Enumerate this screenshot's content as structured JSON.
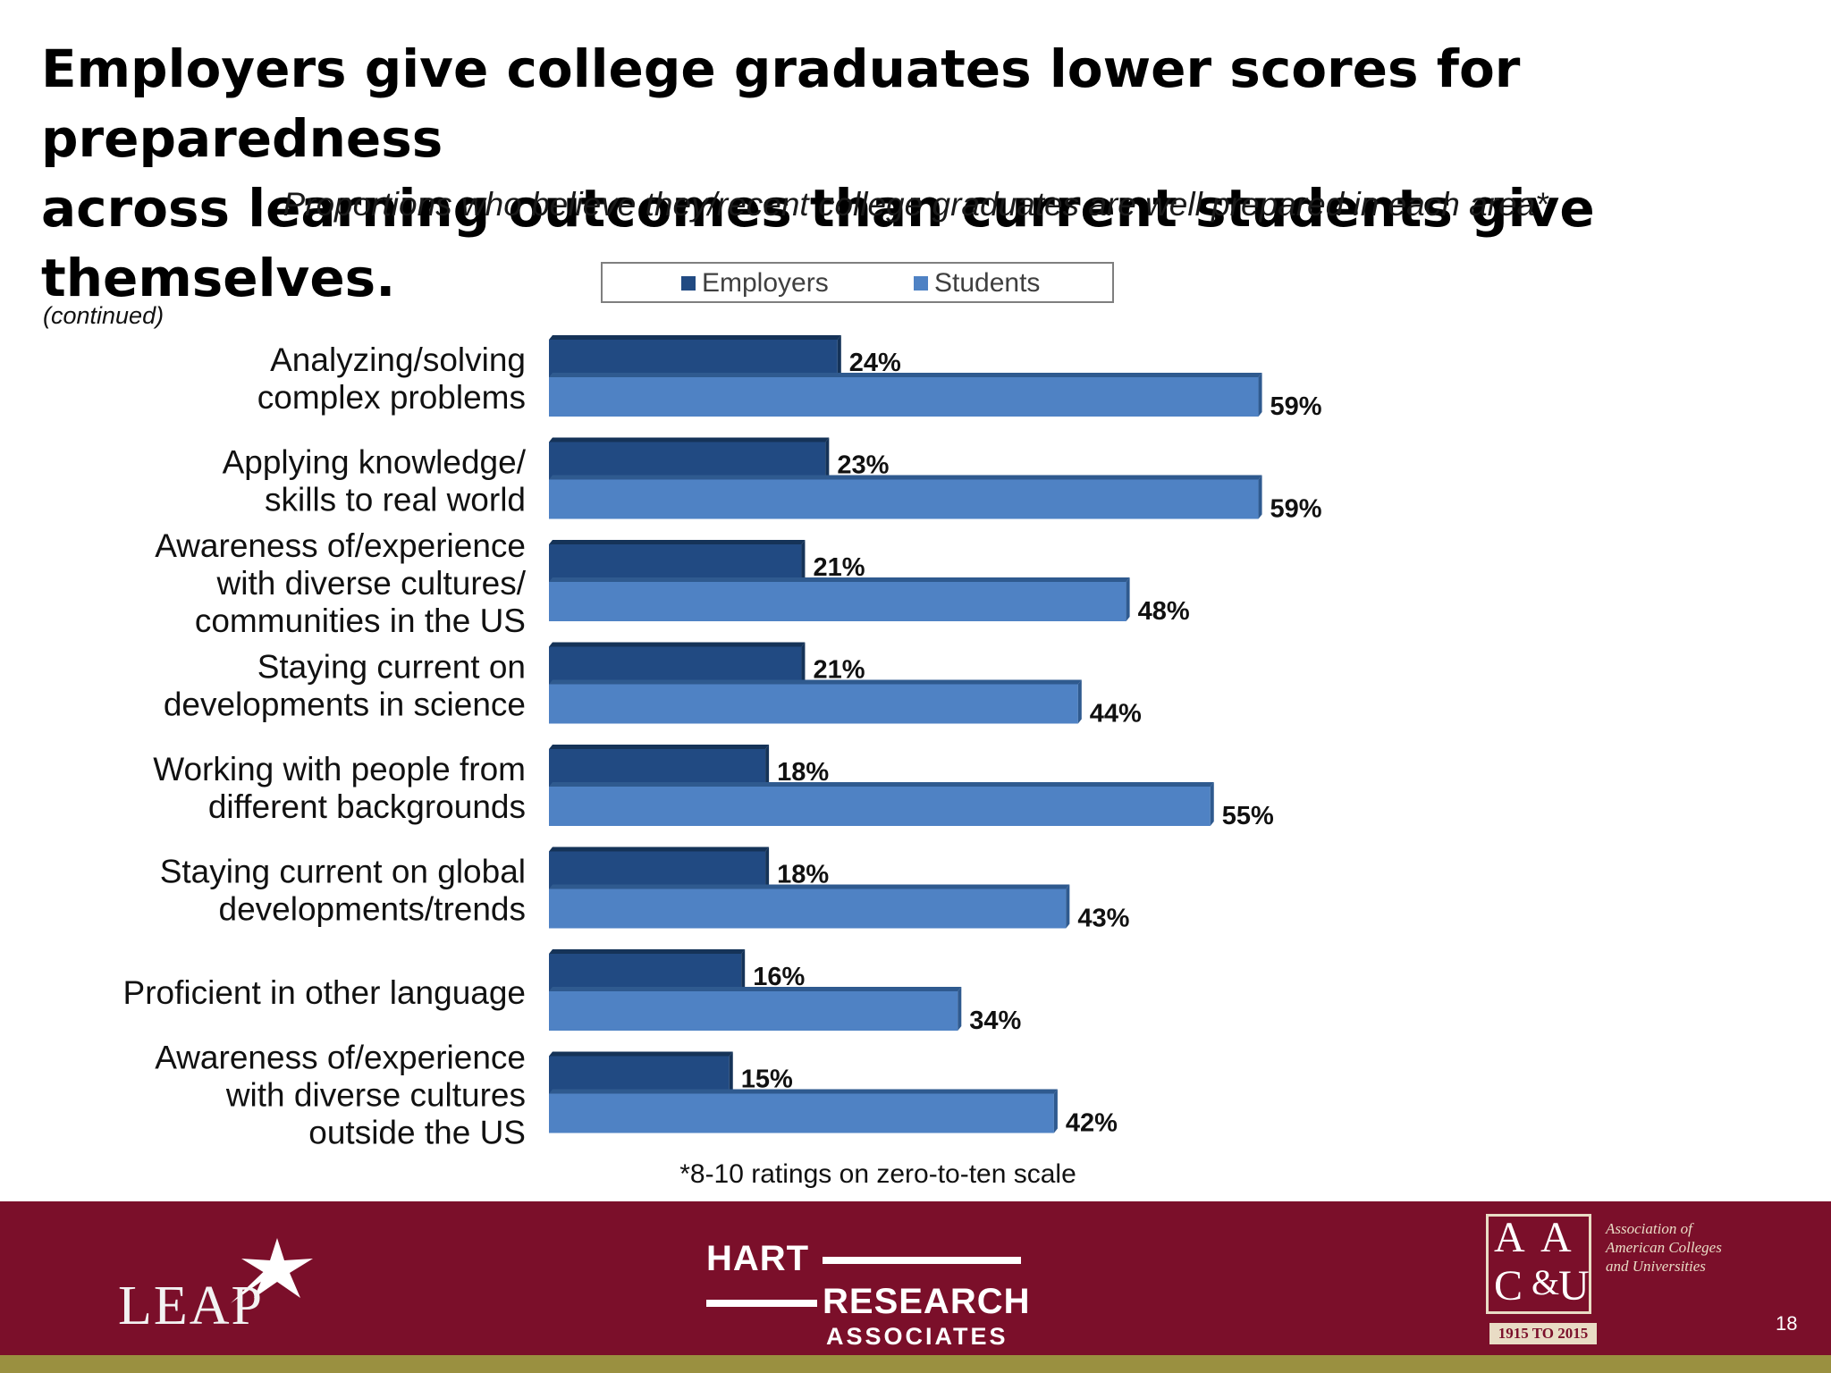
{
  "title_lines": [
    "Employers give college graduates lower scores for preparedness",
    "across learning outcomes than current students give themselves."
  ],
  "continued_note": "(continued)",
  "footnote": "*8-10 ratings on zero-to-ten scale",
  "colors": {
    "employers": "#214a82",
    "students": "#4f82c4",
    "footer": "#7b0f2a",
    "footer_stripe": "#9a9040"
  },
  "footer": {
    "leap_logo": "LEAP",
    "hart_line1": "HART",
    "hart_line2": "RESEARCH",
    "hart_line3": "ASSOCIATES",
    "aacu_letters": "AAC&U",
    "aacu_org": "Association of American Colleges and Universities",
    "aacu_years": "1915 TO 2015",
    "page_number": "18"
  },
  "chart_data": {
    "type": "bar",
    "orientation": "horizontal",
    "title": "Proportions who believe they/recent college graduates are well prepared in each area*",
    "categories": [
      [
        "Analyzing/solving",
        "complex problems"
      ],
      [
        "Applying knowledge/",
        "skills to real world"
      ],
      [
        "Awareness of/experience",
        "with diverse cultures/",
        "communities in the US"
      ],
      [
        "Staying current on",
        "developments in science"
      ],
      [
        "Working with people from",
        "different backgrounds"
      ],
      [
        "Staying current on global",
        "developments/trends"
      ],
      [
        "Proficient in other language"
      ],
      [
        "Awareness of/experience",
        "with diverse cultures",
        "outside the US"
      ]
    ],
    "series": [
      {
        "name": "Employers",
        "values": [
          24,
          23,
          21,
          21,
          18,
          18,
          16,
          15
        ],
        "labels": [
          "24%",
          "23%",
          "21%",
          "21%",
          "18%",
          "18%",
          "16%",
          "15%"
        ]
      },
      {
        "name": "Students",
        "values": [
          59,
          59,
          48,
          44,
          55,
          43,
          34,
          42
        ],
        "labels": [
          "59%",
          "59%",
          "48%",
          "44%",
          "55%",
          "43%",
          "34%",
          "42%"
        ]
      }
    ],
    "xlim": [
      0,
      60
    ],
    "legend_position": "top",
    "grid": false
  }
}
